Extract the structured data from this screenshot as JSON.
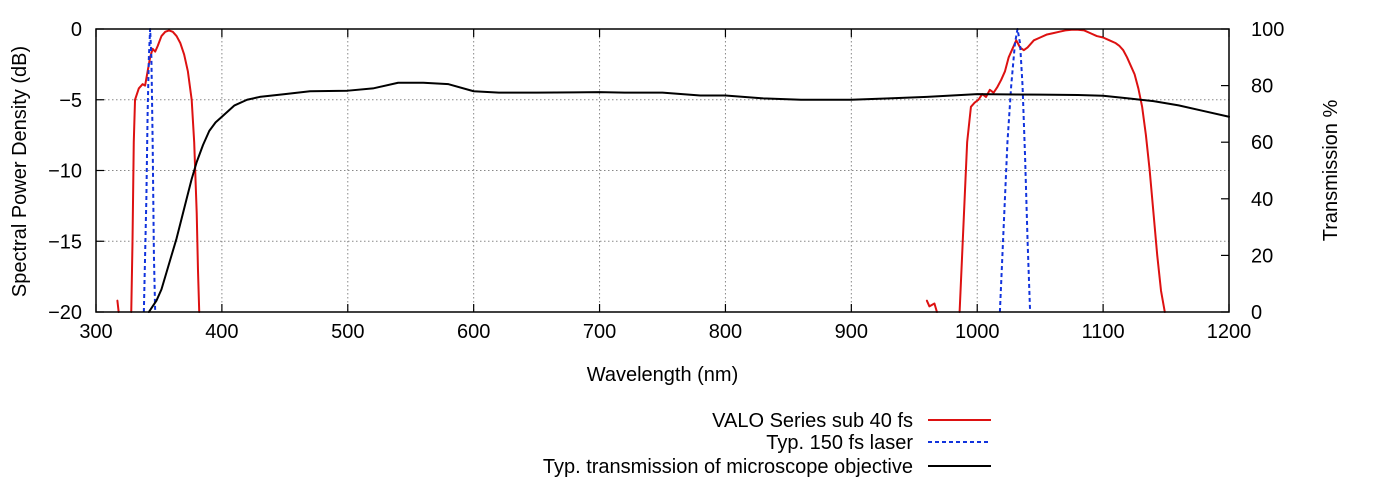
{
  "chart_data": {
    "type": "line",
    "title": "",
    "xlabel": "Wavelength (nm)",
    "ylabel": "Spectral Power Density (dB)",
    "y2label": "Transmission %",
    "xlim": [
      300,
      1200
    ],
    "ylim": [
      -20,
      0
    ],
    "y2lim": [
      0,
      100
    ],
    "xticks": [
      300,
      400,
      500,
      600,
      700,
      800,
      900,
      1000,
      1100,
      1200
    ],
    "yticks": [
      -20,
      -15,
      -10,
      -5,
      0
    ],
    "y2ticks": [
      0,
      20,
      40,
      60,
      80,
      100
    ],
    "ytick_labels": [
      "−20",
      "−15",
      "−10",
      "−5",
      "0"
    ],
    "grid": true,
    "legend_position": "bottom-center",
    "series": [
      {
        "name": "VALO Series sub 40 fs",
        "axis": "y",
        "color": "#dd1111",
        "style": "solid",
        "segments": [
          [
            [
              317,
              -19.2
            ],
            [
              318,
              -20
            ]
          ],
          [
            [
              328,
              -20
            ],
            [
              329,
              -15
            ],
            [
              330,
              -8
            ],
            [
              331,
              -5
            ],
            [
              334,
              -4.2
            ],
            [
              337,
              -3.9
            ],
            [
              339,
              -4
            ],
            [
              341,
              -3
            ],
            [
              343,
              -2
            ],
            [
              345,
              -1.4
            ],
            [
              347,
              -1.6
            ],
            [
              349,
              -1.2
            ],
            [
              352,
              -0.5
            ],
            [
              355,
              -0.2
            ],
            [
              358,
              -0.1
            ],
            [
              361,
              -0.2
            ],
            [
              364,
              -0.5
            ],
            [
              367,
              -1
            ],
            [
              370,
              -1.8
            ],
            [
              373,
              -3
            ],
            [
              376,
              -5
            ],
            [
              378,
              -8
            ],
            [
              380,
              -13
            ],
            [
              381,
              -17
            ],
            [
              382,
              -20
            ]
          ],
          [
            [
              960,
              -19.2
            ],
            [
              962,
              -19.6
            ],
            [
              966,
              -19.4
            ],
            [
              968,
              -20
            ]
          ],
          [
            [
              986,
              -20
            ],
            [
              988,
              -16
            ],
            [
              990,
              -12
            ],
            [
              992,
              -8
            ],
            [
              995,
              -5.5
            ],
            [
              998,
              -5.2
            ],
            [
              1001,
              -5
            ],
            [
              1004,
              -4.6
            ],
            [
              1007,
              -4.8
            ],
            [
              1010,
              -4.3
            ],
            [
              1013,
              -4.5
            ],
            [
              1016,
              -4.1
            ],
            [
              1019,
              -3.6
            ],
            [
              1022,
              -3
            ],
            [
              1025,
              -2
            ],
            [
              1028,
              -1.4
            ],
            [
              1031,
              -0.8
            ],
            [
              1034,
              -1.3
            ],
            [
              1037,
              -1.5
            ],
            [
              1040,
              -1.3
            ],
            [
              1045,
              -0.8
            ],
            [
              1050,
              -0.6
            ],
            [
              1055,
              -0.4
            ],
            [
              1060,
              -0.3
            ],
            [
              1065,
              -0.2
            ],
            [
              1070,
              -0.1
            ],
            [
              1075,
              -0.05
            ],
            [
              1080,
              -0.05
            ],
            [
              1085,
              -0.1
            ],
            [
              1090,
              -0.3
            ],
            [
              1095,
              -0.5
            ],
            [
              1100,
              -0.6
            ],
            [
              1105,
              -0.8
            ],
            [
              1110,
              -1
            ],
            [
              1113,
              -1.2
            ],
            [
              1116,
              -1.5
            ],
            [
              1119,
              -2
            ],
            [
              1122,
              -2.6
            ],
            [
              1125,
              -3.2
            ],
            [
              1128,
              -4.2
            ],
            [
              1131,
              -5.5
            ],
            [
              1134,
              -7.5
            ],
            [
              1137,
              -10
            ],
            [
              1140,
              -13
            ],
            [
              1143,
              -16
            ],
            [
              1146,
              -18.5
            ],
            [
              1149,
              -20
            ]
          ]
        ]
      },
      {
        "name": "Typ. 150 fs laser",
        "axis": "y",
        "color": "#1133dd",
        "style": "dashed",
        "segments": [
          [
            [
              338,
              -20
            ],
            [
              340,
              -12
            ],
            [
              341,
              -6
            ],
            [
              342,
              -2
            ],
            [
              343,
              0
            ],
            [
              344,
              -2
            ],
            [
              345,
              -8
            ],
            [
              346,
              -16
            ],
            [
              347,
              -20
            ]
          ],
          [
            [
              1018,
              -20
            ],
            [
              1021,
              -14
            ],
            [
              1024,
              -8
            ],
            [
              1027,
              -4
            ],
            [
              1030,
              -1
            ],
            [
              1032,
              0
            ],
            [
              1034,
              -1
            ],
            [
              1036,
              -4
            ],
            [
              1038,
              -9
            ],
            [
              1040,
              -15
            ],
            [
              1042,
              -20
            ]
          ]
        ]
      },
      {
        "name": "Typ. transmission of microscope objective",
        "axis": "y2",
        "color": "#000000",
        "style": "solid",
        "segments": [
          [
            [
              342,
              0
            ],
            [
              345,
              2
            ],
            [
              348,
              4
            ],
            [
              352,
              8
            ],
            [
              356,
              14
            ],
            [
              360,
              20
            ],
            [
              364,
              26
            ],
            [
              368,
              33
            ],
            [
              372,
              40
            ],
            [
              376,
              47
            ],
            [
              380,
              53
            ],
            [
              385,
              59
            ],
            [
              390,
              64
            ],
            [
              395,
              67
            ],
            [
              400,
              69
            ],
            [
              410,
              73
            ],
            [
              420,
              75
            ],
            [
              430,
              76
            ],
            [
              440,
              76.5
            ],
            [
              450,
              77
            ],
            [
              470,
              78
            ],
            [
              500,
              78.2
            ],
            [
              520,
              79
            ],
            [
              540,
              81
            ],
            [
              560,
              81
            ],
            [
              580,
              80.5
            ],
            [
              600,
              78
            ],
            [
              620,
              77.5
            ],
            [
              650,
              77.5
            ],
            [
              680,
              77.6
            ],
            [
              700,
              77.7
            ],
            [
              720,
              77.5
            ],
            [
              750,
              77.5
            ],
            [
              780,
              76.5
            ],
            [
              800,
              76.5
            ],
            [
              830,
              75.5
            ],
            [
              860,
              75
            ],
            [
              880,
              75
            ],
            [
              900,
              75
            ],
            [
              930,
              75.5
            ],
            [
              960,
              76
            ],
            [
              1000,
              77
            ],
            [
              1050,
              76.8
            ],
            [
              1080,
              76.7
            ],
            [
              1100,
              76.4
            ],
            [
              1120,
              75.5
            ],
            [
              1140,
              74.5
            ],
            [
              1160,
              73
            ],
            [
              1180,
              71
            ],
            [
              1200,
              69
            ]
          ]
        ]
      }
    ]
  }
}
